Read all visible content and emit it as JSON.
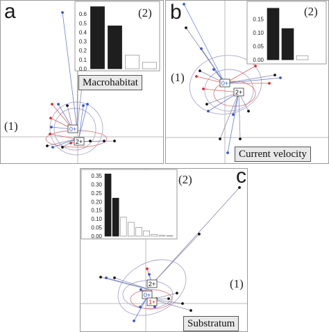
{
  "panels": [
    {
      "letter": "a",
      "factor": "Macrohabitat",
      "scatter_tag": "(1)",
      "inset_tag": "(2)",
      "chart_data": {
        "type": "bar",
        "values": [
          0.68,
          0.47,
          0.15,
          0.07
        ],
        "ylim": [
          0,
          0.7
        ],
        "yticks": [
          "0.0",
          "0.1",
          "0.2",
          "0.3",
          "0.4",
          "0.5",
          "0.6"
        ],
        "group_labels": [
          "0+",
          "2+"
        ]
      }
    },
    {
      "letter": "b",
      "factor": "Current velocity",
      "scatter_tag": "(1)",
      "inset_tag": "(2)",
      "chart_data": {
        "type": "bar",
        "values": [
          0.19,
          0.115,
          0.015
        ],
        "ylim": [
          0,
          0.2
        ],
        "yticks": [
          "0.00",
          "0.05",
          "0.10",
          "0.15"
        ],
        "group_labels": [
          "0+",
          "2+"
        ]
      }
    },
    {
      "letter": "c",
      "factor": "Substratum",
      "scatter_tag": "(1)",
      "inset_tag": "(2)",
      "chart_data": {
        "type": "bar",
        "values": [
          0.36,
          0.22,
          0.11,
          0.08,
          0.05,
          0.03,
          0.01,
          0.005,
          0.003
        ],
        "ylim": [
          0,
          0.37
        ],
        "yticks": [
          "0.00",
          "0.05",
          "0.10",
          "0.15",
          "0.20",
          "0.25",
          "0.30",
          "0.35"
        ],
        "group_labels": [
          "2+",
          "0+",
          "1+"
        ]
      }
    }
  ],
  "colors": {
    "bar": "#1e1e1e",
    "point_red": "#e02a2a",
    "point_blue": "#3a55c8",
    "point_black": "#111111",
    "line_red": "#e06060",
    "line_blue": "#6a7fd6",
    "ellipse": "#a9a9c9"
  }
}
